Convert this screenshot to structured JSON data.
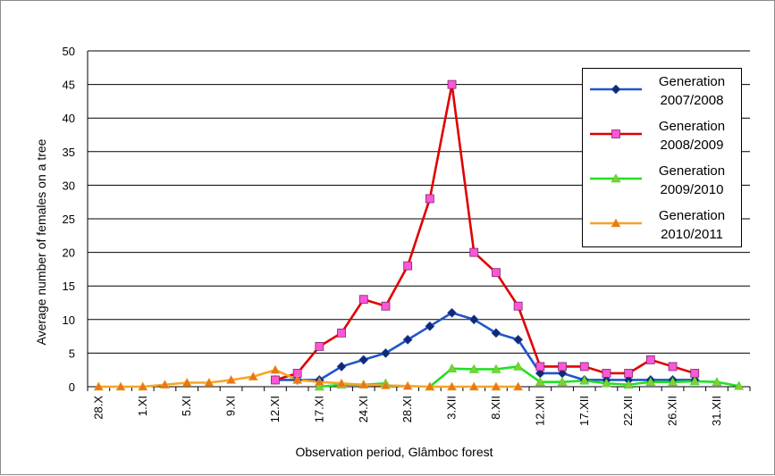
{
  "chart_data": {
    "type": "line",
    "title": "",
    "xlabel": "Observation period, Glâmboc forest",
    "ylabel": "Average number of females on a tree",
    "ylim": [
      0,
      50
    ],
    "yticks": [
      0,
      5,
      10,
      15,
      20,
      25,
      30,
      35,
      40,
      45,
      50
    ],
    "grid": true,
    "legend_position": "top-right",
    "categories": [
      "28.X",
      "",
      "1.XI",
      "",
      "5.XI",
      "",
      "9.XI",
      "",
      "12.XI",
      "",
      "17.XI",
      "",
      "24.XI",
      "",
      "28.XI",
      "",
      "3.XII",
      "",
      "8.XII",
      "",
      "12.XII",
      "",
      "17.XII",
      "",
      "22.XII",
      "",
      "26.XII",
      "",
      "31.XII",
      ""
    ],
    "series": [
      {
        "name": "Generation 2007/2008",
        "name_lines": [
          "Generation",
          "2007/2008"
        ],
        "color": "#1f56c8",
        "marker": "diamond",
        "marker_color": "#16286e",
        "values": [
          null,
          null,
          null,
          null,
          null,
          null,
          null,
          null,
          1,
          1,
          1,
          3,
          4,
          5,
          7,
          9,
          11,
          10,
          8,
          7,
          2,
          2,
          1,
          1,
          1,
          1,
          1,
          1,
          null,
          null
        ]
      },
      {
        "name": "Generation 2008/2009",
        "name_lines": [
          "Generation",
          "2008/2009"
        ],
        "color": "#e00000",
        "marker": "square",
        "marker_color": "#ff55d8",
        "values": [
          null,
          null,
          null,
          null,
          null,
          null,
          null,
          null,
          1,
          2,
          6,
          8,
          13,
          12,
          18,
          28,
          45,
          20,
          17,
          12,
          3,
          3,
          3,
          2,
          2,
          4,
          3,
          2,
          null,
          null
        ]
      },
      {
        "name": "Generation 2009/2010",
        "name_lines": [
          "Generation",
          "2009/2010"
        ],
        "color": "#22e022",
        "marker": "triangle",
        "marker_color": "#88cc33",
        "values": [
          null,
          null,
          null,
          null,
          null,
          null,
          null,
          null,
          null,
          null,
          0,
          0.3,
          0.3,
          0.5,
          null,
          0,
          2.7,
          2.6,
          2.6,
          3,
          0.7,
          0.7,
          0.9,
          0.5,
          0.3,
          0.7,
          0.7,
          0.8,
          0.7,
          0.1
        ]
      },
      {
        "name": "Generation 2010/2011",
        "name_lines": [
          "Generation",
          "2010/2011"
        ],
        "color": "#f5a623",
        "marker": "triangle",
        "marker_color": "#e8761a",
        "values": [
          0,
          0,
          0,
          0.3,
          0.6,
          0.6,
          1,
          1.5,
          2.5,
          1,
          0.7,
          0.5,
          0.3,
          0.2,
          0.1,
          0,
          0,
          0,
          0,
          0,
          null,
          null,
          null,
          null,
          null,
          null,
          null,
          null,
          null,
          null
        ]
      }
    ]
  }
}
